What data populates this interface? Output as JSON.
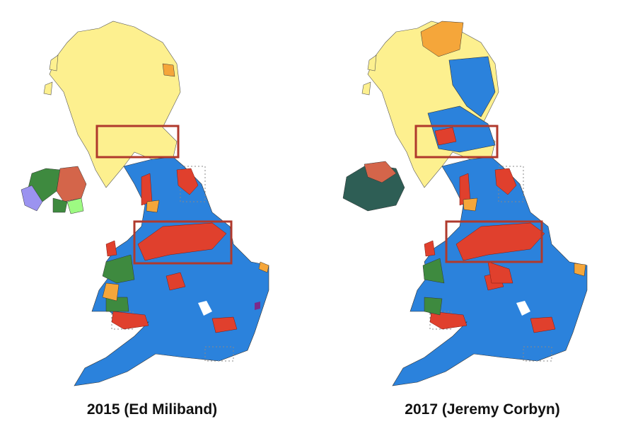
{
  "maps": [
    {
      "caption": "2015 (Ed Miliband)"
    },
    {
      "caption": "2017 (Jeremy Corbyn)"
    }
  ]
}
